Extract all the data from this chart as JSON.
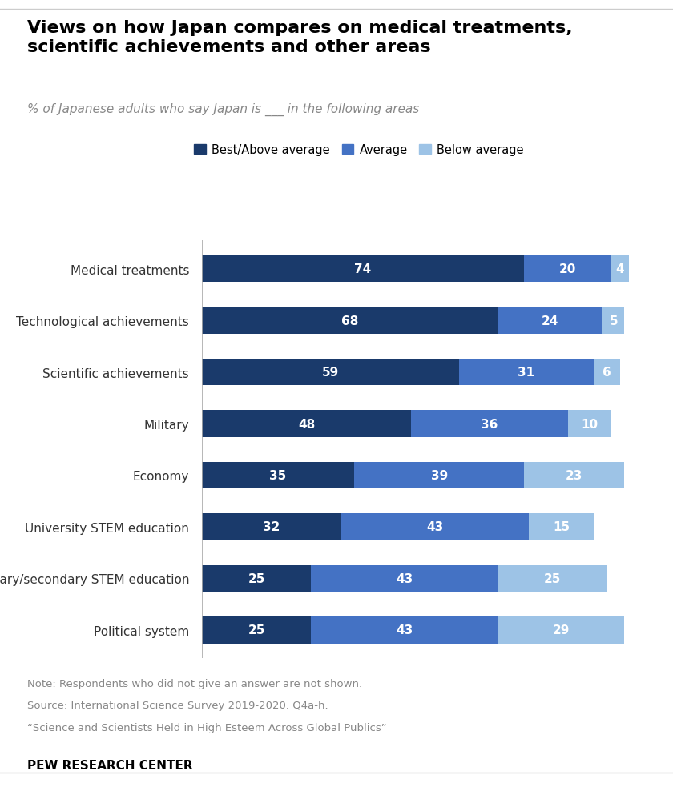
{
  "title": "Views on how Japan compares on medical treatments,\nscientific achievements and other areas",
  "subtitle": "% of Japanese adults who say Japan is ___ in the following areas",
  "categories": [
    "Medical treatments",
    "Technological achievements",
    "Scientific achievements",
    "Military",
    "Economy",
    "University STEM education",
    "Primary/secondary STEM education",
    "Political system"
  ],
  "best_above": [
    74,
    68,
    59,
    48,
    35,
    32,
    25,
    25
  ],
  "average": [
    20,
    24,
    31,
    36,
    39,
    43,
    43,
    43
  ],
  "below": [
    4,
    5,
    6,
    10,
    23,
    15,
    25,
    29
  ],
  "colors": {
    "best_above": "#1a3a6b",
    "average": "#4472c4",
    "below": "#9dc3e6"
  },
  "legend_labels": [
    "Best/Above average",
    "Average",
    "Below average"
  ],
  "note_lines": [
    "Note: Respondents who did not give an answer are not shown.",
    "Source: International Science Survey 2019-2020. Q4a-h.",
    "“Science and Scientists Held in High Esteem Across Global Publics”"
  ],
  "footer": "PEW RESEARCH CENTER",
  "background_color": "#ffffff"
}
